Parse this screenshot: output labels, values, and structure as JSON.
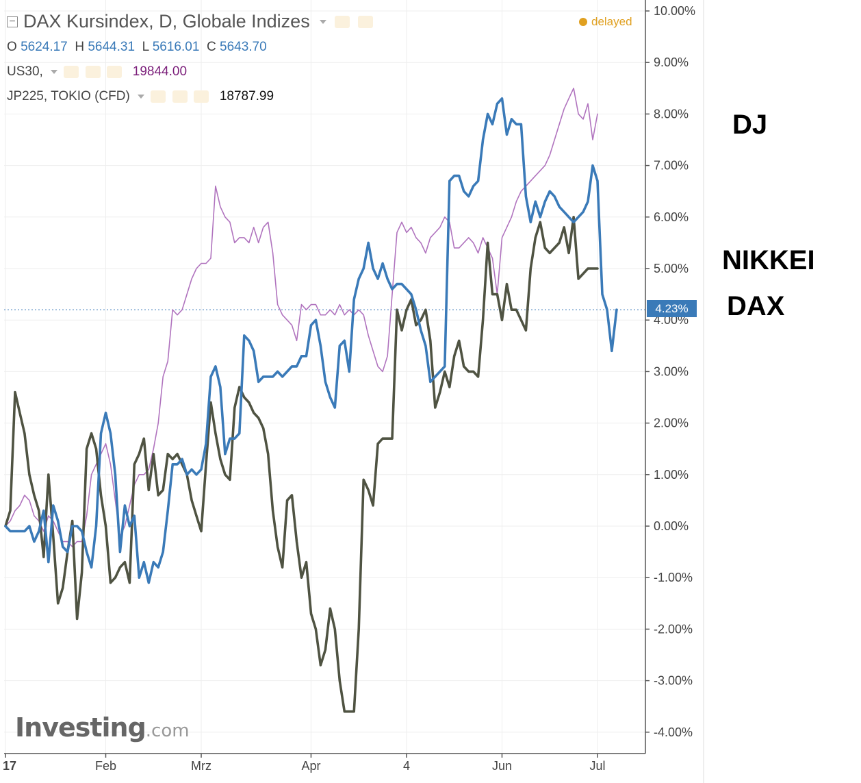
{
  "header": {
    "title": "DAX Kursindex, D, Globale Indizes",
    "status": "delayed",
    "ohlc": [
      {
        "label": "O",
        "value": "5624.17"
      },
      {
        "label": "H",
        "value": "5644.31"
      },
      {
        "label": "L",
        "value": "5616.01"
      },
      {
        "label": "C",
        "value": "5643.70"
      }
    ],
    "compare": [
      {
        "symbol": "US30,",
        "value": "19844.00"
      },
      {
        "symbol": "JP225, TOKIO (CFD)",
        "value": "18787.99"
      }
    ]
  },
  "side_labels": {
    "dj": "DJ",
    "nikkei": "NIKKEI",
    "dax": "DAX"
  },
  "current_value_tag": "4.23%",
  "logo": {
    "main": "Investing",
    "suffix": ".com"
  },
  "colors": {
    "dax": "#3a7ab8",
    "us30": "#b073be",
    "jp225": "#4f5342",
    "axis": "#555555",
    "grid": "#eeeeee",
    "status": "#e0a020"
  },
  "chart_data": {
    "type": "line",
    "ylim": [
      -4.4,
      10.2
    ],
    "y_ticks": [
      "10.00%",
      "9.00%",
      "8.00%",
      "7.00%",
      "6.00%",
      "5.00%",
      "4.00%",
      "3.00%",
      "2.00%",
      "1.00%",
      "0.00%",
      "-1.00%",
      "-2.00%",
      "-3.00%",
      "-4.00%"
    ],
    "x_ticks": [
      "17",
      "Feb",
      "Mrz",
      "Apr",
      "4",
      "Jun",
      "Jul"
    ],
    "n_points": 125,
    "series": [
      {
        "name": "DAX Kursindex",
        "values": [
          0.0,
          -0.1,
          -0.1,
          -0.1,
          -0.1,
          -0.0,
          -0.3,
          -0.1,
          0.3,
          -0.7,
          0.4,
          0.1,
          -0.4,
          -0.5,
          -0.0,
          -0.0,
          -0.1,
          -0.5,
          -0.8,
          -0.0,
          1.8,
          2.2,
          1.8,
          1.0,
          -0.5,
          0.4,
          -0.0,
          0.2,
          -1.0,
          -0.7,
          -1.1,
          -0.7,
          -0.8,
          -0.5,
          0.3,
          1.2,
          1.2,
          1.3,
          1.0,
          1.1,
          1.0,
          1.1,
          1.6,
          2.9,
          3.1,
          2.7,
          1.4,
          1.7,
          1.7,
          1.8,
          3.7,
          3.6,
          3.4,
          2.8,
          2.9,
          2.9,
          2.9,
          3.0,
          2.9,
          3.0,
          3.1,
          3.1,
          3.3,
          3.3,
          3.9,
          4.0,
          3.5,
          2.8,
          2.5,
          2.3,
          3.5,
          3.6,
          3.0,
          4.4,
          4.8,
          5.0,
          5.5,
          5.0,
          4.8,
          5.1,
          4.8,
          4.6,
          4.7,
          4.7,
          4.6,
          4.5,
          4.2,
          3.8,
          3.5,
          2.8,
          2.9,
          3.0,
          3.1,
          6.7,
          6.8,
          6.8,
          6.5,
          6.4,
          6.6,
          6.7,
          7.5,
          8.0,
          7.8,
          8.2,
          8.3,
          7.6,
          7.9,
          7.8,
          7.8,
          6.4,
          5.9,
          6.3,
          6.0,
          6.3,
          6.5,
          6.4,
          6.2,
          6.1,
          6.0,
          5.9,
          6.0,
          6.1,
          6.3,
          7.0,
          6.7,
          4.5,
          4.2,
          3.4,
          4.2
        ]
      },
      {
        "name": "US30",
        "values": [
          0.0,
          0.1,
          0.3,
          0.4,
          0.6,
          0.5,
          0.2,
          0.1,
          -0.1,
          0.2,
          0.1,
          -0.1,
          -0.3,
          -0.3,
          -0.4,
          -0.3,
          -0.3,
          0.2,
          1.0,
          1.2,
          1.4,
          1.6,
          1.2,
          0.5,
          -0.2,
          0.0,
          0.4,
          0.8,
          1.0,
          1.0,
          1.1,
          1.5,
          2.0,
          2.9,
          3.2,
          4.2,
          4.1,
          4.2,
          4.5,
          4.8,
          5.0,
          5.1,
          5.1,
          5.2,
          6.6,
          6.2,
          6.0,
          5.9,
          5.5,
          5.6,
          5.6,
          5.5,
          5.8,
          5.5,
          5.8,
          5.9,
          5.3,
          4.3,
          4.1,
          4.0,
          3.9,
          3.6,
          4.3,
          4.2,
          4.3,
          4.3,
          4.1,
          4.1,
          4.2,
          4.1,
          4.3,
          4.1,
          4.2,
          4.1,
          4.2,
          4.1,
          3.7,
          3.4,
          3.1,
          3.0,
          3.3,
          4.5,
          5.7,
          5.9,
          5.7,
          5.8,
          5.6,
          5.5,
          5.3,
          5.6,
          5.7,
          5.8,
          6.0,
          5.9,
          5.4,
          5.4,
          5.5,
          5.6,
          5.5,
          5.3,
          5.6,
          5.4,
          5.2,
          4.5,
          5.6,
          5.8,
          6.0,
          6.3,
          6.5,
          6.6,
          6.7,
          6.8,
          6.9,
          7.0,
          7.2,
          7.5,
          7.8,
          8.1,
          8.3,
          8.5,
          8.0,
          7.9,
          8.2,
          7.5,
          8.0
        ]
      },
      {
        "name": "JP225, TOKIO (CFD)",
        "values": [
          0.0,
          0.3,
          2.6,
          2.2,
          1.8,
          1.0,
          0.6,
          0.3,
          -0.6,
          1.0,
          -0.2,
          -1.5,
          -1.2,
          -0.5,
          0.1,
          -1.8,
          -0.9,
          1.5,
          1.8,
          1.5,
          0.6,
          0.0,
          -1.1,
          -1.0,
          -0.8,
          -0.7,
          -1.1,
          1.2,
          1.4,
          1.7,
          0.7,
          1.4,
          0.6,
          0.7,
          1.4,
          1.3,
          1.4,
          1.2,
          1.0,
          0.5,
          0.2,
          -0.1,
          1.2,
          2.4,
          1.8,
          1.3,
          1.0,
          0.9,
          2.3,
          2.7,
          2.5,
          2.4,
          2.2,
          2.1,
          1.9,
          1.4,
          0.3,
          -0.4,
          -0.8,
          0.5,
          0.6,
          -0.3,
          -1.0,
          -0.7,
          -1.7,
          -2.0,
          -2.7,
          -2.4,
          -1.6,
          -2.0,
          -3.0,
          -3.6,
          -3.6,
          -3.6,
          -2.0,
          0.9,
          0.7,
          0.4,
          1.6,
          1.7,
          1.7,
          1.7,
          4.2,
          3.8,
          4.2,
          4.4,
          3.9,
          4.0,
          4.2,
          3.6,
          2.3,
          2.6,
          3.0,
          2.7,
          3.3,
          3.6,
          3.1,
          3.0,
          3.0,
          2.9,
          4.0,
          5.5,
          4.5,
          4.5,
          4.0,
          4.7,
          4.2,
          4.2,
          4.0,
          3.8,
          5.0,
          5.6,
          5.9,
          5.4,
          5.3,
          5.4,
          5.5,
          5.8,
          5.3,
          6.0,
          4.8,
          4.9,
          5.0,
          5.0,
          5.0
        ]
      }
    ]
  }
}
